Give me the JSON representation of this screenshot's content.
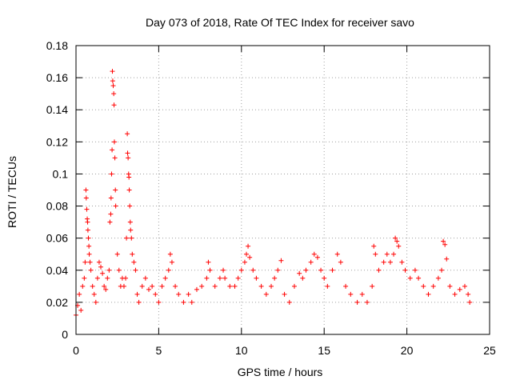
{
  "chart_data": {
    "type": "scatter",
    "title": "Day 073 of 2018, Rate Of TEC Index for receiver savo",
    "xlabel": "GPS time / hours",
    "ylabel": "ROTI / TECUs",
    "xlim": [
      0,
      25
    ],
    "ylim": [
      0,
      0.18
    ],
    "xticks": [
      0,
      5,
      10,
      15,
      20,
      25
    ],
    "yticks": [
      0,
      0.02,
      0.04,
      0.06,
      0.08,
      0.1,
      0.12,
      0.14,
      0.16,
      0.18
    ],
    "grid": true,
    "series": [
      {
        "name": "ROTI",
        "color": "#ff0000",
        "marker": "+",
        "points": [
          [
            0.0,
            0.012
          ],
          [
            0.1,
            0.018
          ],
          [
            0.2,
            0.025
          ],
          [
            0.3,
            0.015
          ],
          [
            0.4,
            0.03
          ],
          [
            0.5,
            0.035
          ],
          [
            0.55,
            0.045
          ],
          [
            0.6,
            0.09
          ],
          [
            0.62,
            0.085
          ],
          [
            0.65,
            0.078
          ],
          [
            0.68,
            0.072
          ],
          [
            0.7,
            0.07
          ],
          [
            0.72,
            0.065
          ],
          [
            0.75,
            0.06
          ],
          [
            0.78,
            0.055
          ],
          [
            0.8,
            0.05
          ],
          [
            0.85,
            0.045
          ],
          [
            0.9,
            0.04
          ],
          [
            1.0,
            0.03
          ],
          [
            1.1,
            0.025
          ],
          [
            1.2,
            0.02
          ],
          [
            1.3,
            0.035
          ],
          [
            1.4,
            0.045
          ],
          [
            1.5,
            0.042
          ],
          [
            1.6,
            0.038
          ],
          [
            1.7,
            0.03
          ],
          [
            1.8,
            0.028
          ],
          [
            1.9,
            0.035
          ],
          [
            2.0,
            0.04
          ],
          [
            2.05,
            0.07
          ],
          [
            2.1,
            0.075
          ],
          [
            2.12,
            0.085
          ],
          [
            2.15,
            0.1
          ],
          [
            2.18,
            0.115
          ],
          [
            2.2,
            0.164
          ],
          [
            2.22,
            0.158
          ],
          [
            2.25,
            0.155
          ],
          [
            2.28,
            0.15
          ],
          [
            2.3,
            0.143
          ],
          [
            2.32,
            0.12
          ],
          [
            2.35,
            0.11
          ],
          [
            2.38,
            0.09
          ],
          [
            2.4,
            0.08
          ],
          [
            2.5,
            0.05
          ],
          [
            2.6,
            0.04
          ],
          [
            2.7,
            0.03
          ],
          [
            2.8,
            0.035
          ],
          [
            2.9,
            0.03
          ],
          [
            3.0,
            0.035
          ],
          [
            3.05,
            0.06
          ],
          [
            3.1,
            0.125
          ],
          [
            3.12,
            0.113
          ],
          [
            3.15,
            0.11
          ],
          [
            3.18,
            0.1
          ],
          [
            3.2,
            0.098
          ],
          [
            3.22,
            0.09
          ],
          [
            3.25,
            0.08
          ],
          [
            3.28,
            0.07
          ],
          [
            3.3,
            0.065
          ],
          [
            3.35,
            0.06
          ],
          [
            3.4,
            0.05
          ],
          [
            3.5,
            0.045
          ],
          [
            3.6,
            0.04
          ],
          [
            3.7,
            0.025
          ],
          [
            3.8,
            0.02
          ],
          [
            4.0,
            0.03
          ],
          [
            4.2,
            0.035
          ],
          [
            4.4,
            0.028
          ],
          [
            4.6,
            0.03
          ],
          [
            4.8,
            0.025
          ],
          [
            5.0,
            0.02
          ],
          [
            5.2,
            0.03
          ],
          [
            5.4,
            0.035
          ],
          [
            5.6,
            0.04
          ],
          [
            5.7,
            0.05
          ],
          [
            5.8,
            0.045
          ],
          [
            6.0,
            0.03
          ],
          [
            6.2,
            0.025
          ],
          [
            6.5,
            0.02
          ],
          [
            6.8,
            0.025
          ],
          [
            7.0,
            0.02
          ],
          [
            7.3,
            0.028
          ],
          [
            7.6,
            0.03
          ],
          [
            7.9,
            0.035
          ],
          [
            8.0,
            0.045
          ],
          [
            8.1,
            0.04
          ],
          [
            8.4,
            0.03
          ],
          [
            8.7,
            0.035
          ],
          [
            8.9,
            0.04
          ],
          [
            9.0,
            0.035
          ],
          [
            9.3,
            0.03
          ],
          [
            9.6,
            0.03
          ],
          [
            9.8,
            0.035
          ],
          [
            10.0,
            0.04
          ],
          [
            10.2,
            0.045
          ],
          [
            10.3,
            0.05
          ],
          [
            10.4,
            0.055
          ],
          [
            10.5,
            0.048
          ],
          [
            10.7,
            0.04
          ],
          [
            10.9,
            0.035
          ],
          [
            11.2,
            0.03
          ],
          [
            11.5,
            0.025
          ],
          [
            11.8,
            0.03
          ],
          [
            12.0,
            0.035
          ],
          [
            12.2,
            0.04
          ],
          [
            12.4,
            0.046
          ],
          [
            12.6,
            0.025
          ],
          [
            12.9,
            0.02
          ],
          [
            13.2,
            0.03
          ],
          [
            13.5,
            0.038
          ],
          [
            13.7,
            0.035
          ],
          [
            13.9,
            0.04
          ],
          [
            14.2,
            0.045
          ],
          [
            14.4,
            0.05
          ],
          [
            14.6,
            0.048
          ],
          [
            14.8,
            0.04
          ],
          [
            15.0,
            0.035
          ],
          [
            15.2,
            0.03
          ],
          [
            15.5,
            0.04
          ],
          [
            15.8,
            0.05
          ],
          [
            16.0,
            0.045
          ],
          [
            16.3,
            0.03
          ],
          [
            16.6,
            0.025
          ],
          [
            17.0,
            0.02
          ],
          [
            17.3,
            0.025
          ],
          [
            17.6,
            0.02
          ],
          [
            17.9,
            0.03
          ],
          [
            18.0,
            0.055
          ],
          [
            18.1,
            0.05
          ],
          [
            18.3,
            0.04
          ],
          [
            18.6,
            0.045
          ],
          [
            18.8,
            0.05
          ],
          [
            19.0,
            0.045
          ],
          [
            19.2,
            0.05
          ],
          [
            19.3,
            0.06
          ],
          [
            19.4,
            0.058
          ],
          [
            19.5,
            0.055
          ],
          [
            19.7,
            0.045
          ],
          [
            19.9,
            0.04
          ],
          [
            20.2,
            0.035
          ],
          [
            20.5,
            0.04
          ],
          [
            20.7,
            0.035
          ],
          [
            21.0,
            0.03
          ],
          [
            21.3,
            0.025
          ],
          [
            21.6,
            0.03
          ],
          [
            21.9,
            0.035
          ],
          [
            22.1,
            0.04
          ],
          [
            22.2,
            0.058
          ],
          [
            22.3,
            0.056
          ],
          [
            22.4,
            0.047
          ],
          [
            22.6,
            0.03
          ],
          [
            22.9,
            0.025
          ],
          [
            23.2,
            0.028
          ],
          [
            23.5,
            0.03
          ],
          [
            23.7,
            0.025
          ],
          [
            23.8,
            0.02
          ]
        ]
      }
    ]
  }
}
